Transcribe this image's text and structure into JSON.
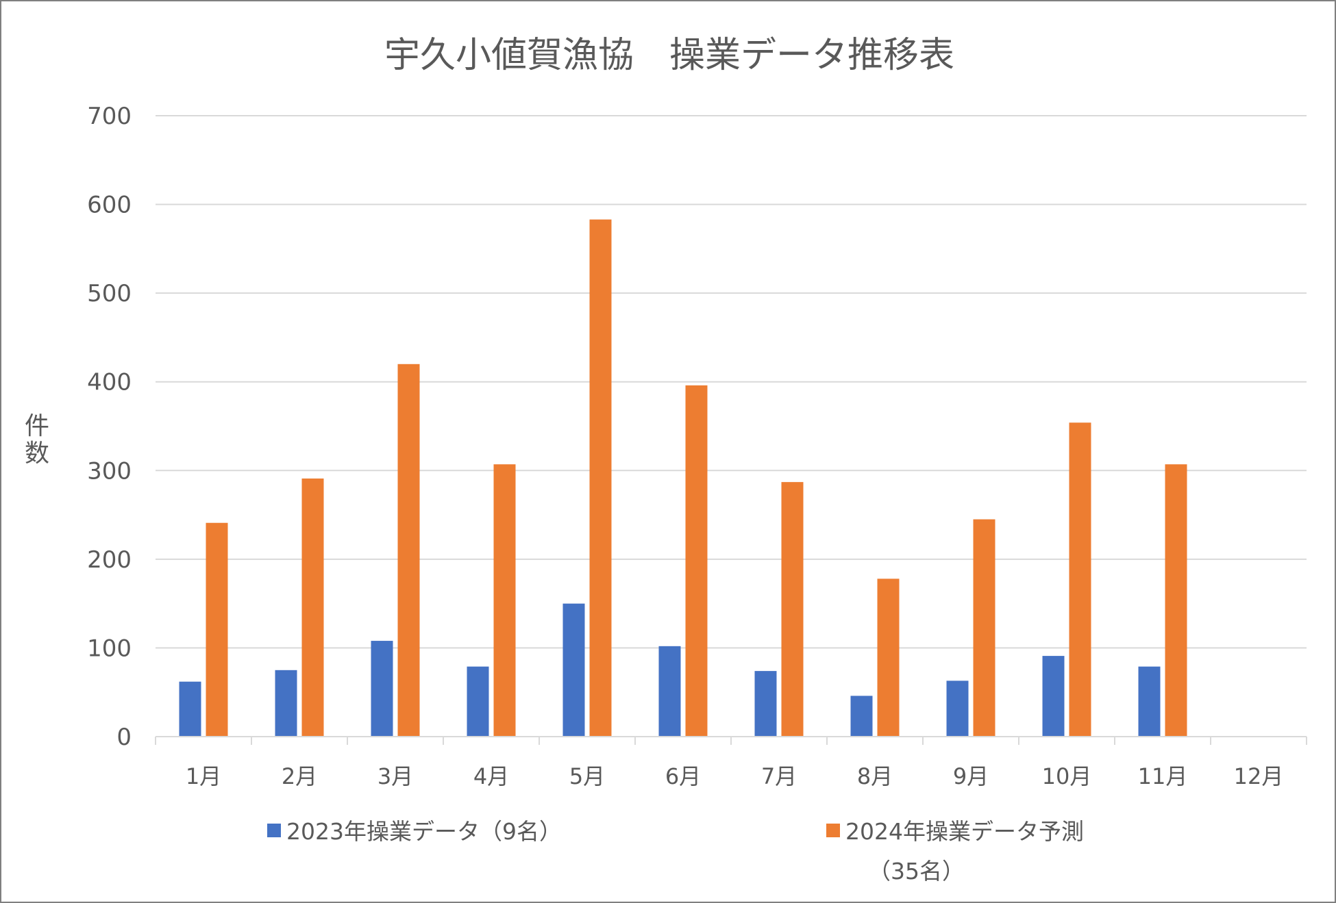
{
  "chart_data": {
    "type": "bar",
    "title": "宇久小値賀漁協　操業データ推移表",
    "xlabel": "",
    "ylabel": "件数",
    "ylabel_chars": [
      "件",
      "数"
    ],
    "ylim": [
      0,
      700
    ],
    "yticks": [
      "0",
      "100",
      "200",
      "300",
      "400",
      "500",
      "600",
      "700"
    ],
    "ytick_values": [
      0,
      100,
      200,
      300,
      400,
      500,
      600,
      700
    ],
    "grid": true,
    "legend_position": "bottom",
    "categories": [
      "1月",
      "2月",
      "3月",
      "4月",
      "5月",
      "6月",
      "7月",
      "8月",
      "9月",
      "10月",
      "11月",
      "12月"
    ],
    "series": [
      {
        "name": "2023年操業データ（9名）",
        "legend_lines": [
          "2023年操業データ（9名）"
        ],
        "color": "#4472C4",
        "values": [
          62,
          75,
          108,
          79,
          150,
          102,
          74,
          46,
          63,
          91,
          79,
          null
        ]
      },
      {
        "name": "2024年操業データ予測（35名）",
        "legend_lines": [
          "2024年操業データ予測",
          "（35名）"
        ],
        "color": "#ED7D31",
        "values": [
          241,
          291,
          420,
          307,
          583,
          396,
          287,
          178,
          245,
          354,
          307,
          null
        ]
      }
    ]
  }
}
